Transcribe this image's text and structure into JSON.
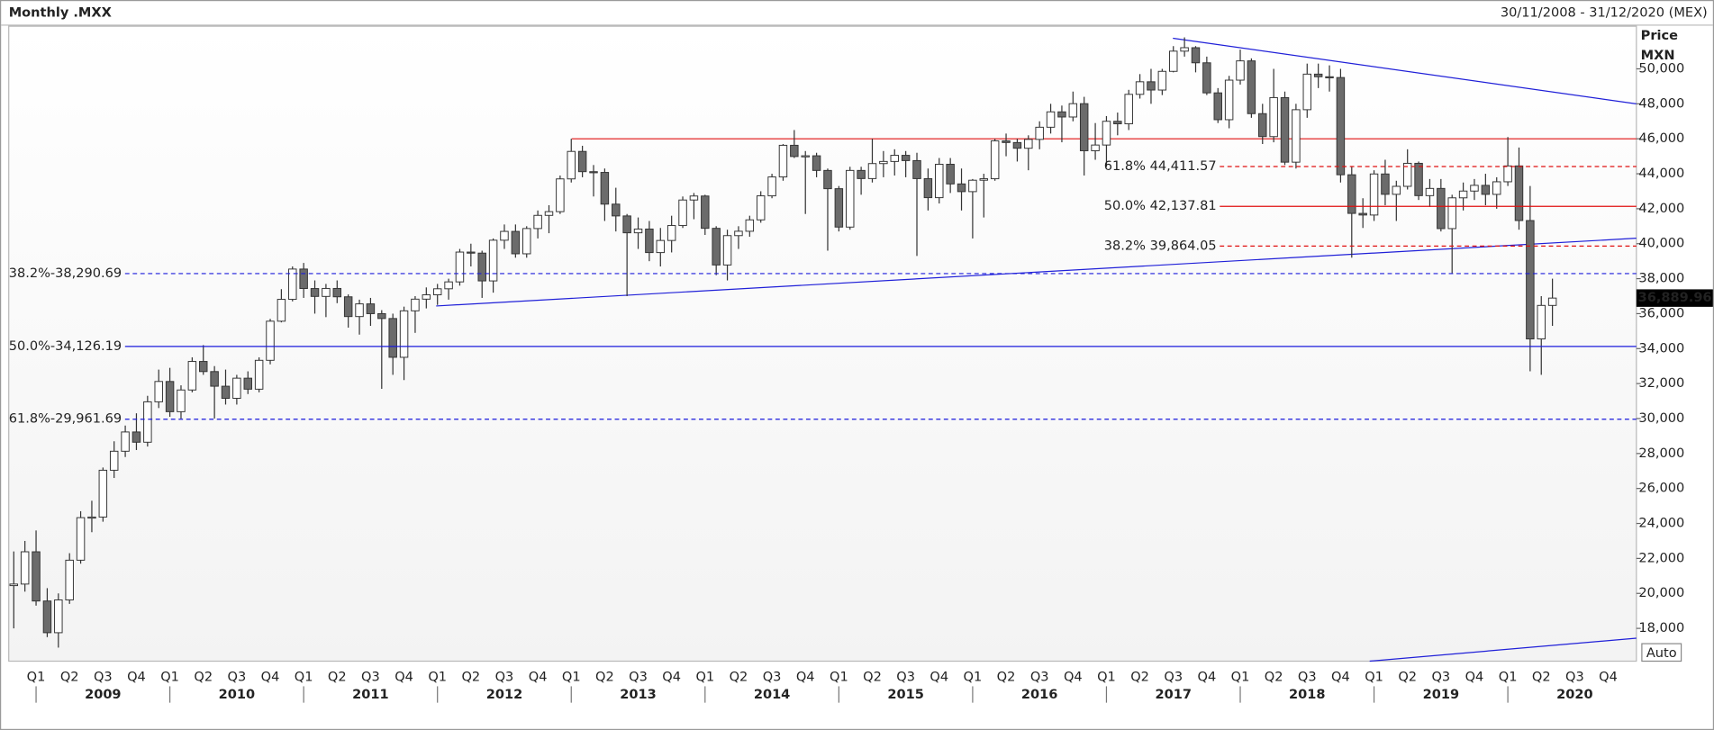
{
  "header": {
    "title": "Monthly .MXX",
    "range": "30/11/2008 - 31/12/2020 (MEX)"
  },
  "chart_data": {
    "type": "candlestick",
    "y_label": "Price",
    "y_unit": "MXN",
    "up_color": "#ffffff",
    "down_color": "#6b6b6b",
    "outline_color": "#333333",
    "ohlc": [
      [
        20445,
        22400,
        18000,
        20534
      ],
      [
        20534,
        23000,
        20100,
        22380
      ],
      [
        22380,
        23600,
        19300,
        19565
      ],
      [
        19565,
        20300,
        17500,
        17752
      ],
      [
        17752,
        20000,
        16900,
        19627
      ],
      [
        19627,
        22300,
        19400,
        21899
      ],
      [
        21899,
        24700,
        21700,
        24332
      ],
      [
        24332,
        25300,
        23500,
        24368
      ],
      [
        24368,
        27200,
        24100,
        27044
      ],
      [
        27044,
        28700,
        26600,
        28130
      ],
      [
        28130,
        29600,
        27800,
        29232
      ],
      [
        29232,
        30300,
        28200,
        28646
      ],
      [
        28646,
        31300,
        28400,
        30957
      ],
      [
        30957,
        32800,
        30600,
        32120
      ],
      [
        32120,
        32900,
        30100,
        30392
      ],
      [
        30392,
        31900,
        30000,
        31634
      ],
      [
        31634,
        33500,
        31500,
        33266
      ],
      [
        33266,
        34200,
        32500,
        32687
      ],
      [
        32687,
        33000,
        30000,
        31849
      ],
      [
        31849,
        32800,
        30800,
        31157
      ],
      [
        31157,
        32500,
        30800,
        32309
      ],
      [
        32309,
        32700,
        31400,
        31680
      ],
      [
        31680,
        33500,
        31500,
        33330
      ],
      [
        33330,
        35700,
        33100,
        35568
      ],
      [
        35568,
        37400,
        35500,
        36818
      ],
      [
        36818,
        38700,
        36700,
        38550
      ],
      [
        38550,
        38900,
        36900,
        37436
      ],
      [
        37436,
        37900,
        36000,
        36984
      ],
      [
        36984,
        37700,
        35800,
        37441
      ],
      [
        37441,
        37900,
        36600,
        36963
      ],
      [
        36963,
        37100,
        35200,
        35833
      ],
      [
        35833,
        36800,
        34800,
        36558
      ],
      [
        36558,
        36900,
        35300,
        35999
      ],
      [
        35999,
        36200,
        31700,
        35721
      ],
      [
        35721,
        36000,
        32500,
        33503
      ],
      [
        33503,
        36400,
        32200,
        36160
      ],
      [
        36160,
        37000,
        34900,
        36829
      ],
      [
        36829,
        37500,
        36300,
        37077
      ],
      [
        37077,
        37700,
        36500,
        37422
      ],
      [
        37422,
        38000,
        36800,
        37816
      ],
      [
        37816,
        39700,
        37600,
        39521
      ],
      [
        39521,
        40000,
        38700,
        39461
      ],
      [
        39461,
        39600,
        36900,
        37872
      ],
      [
        37872,
        40300,
        37200,
        40199
      ],
      [
        40199,
        41100,
        39700,
        40704
      ],
      [
        40704,
        41100,
        39200,
        39422
      ],
      [
        39422,
        41000,
        39200,
        40867
      ],
      [
        40867,
        41900,
        40300,
        41620
      ],
      [
        41620,
        42200,
        40600,
        41833
      ],
      [
        41833,
        43900,
        41700,
        43706
      ],
      [
        43706,
        46000,
        43500,
        45278
      ],
      [
        45278,
        45600,
        43800,
        44120
      ],
      [
        44120,
        44500,
        42700,
        44077
      ],
      [
        44077,
        44300,
        41300,
        42263
      ],
      [
        42263,
        43200,
        40700,
        41588
      ],
      [
        41588,
        41700,
        37000,
        40623
      ],
      [
        40623,
        41500,
        39700,
        40838
      ],
      [
        40838,
        41300,
        39000,
        39492
      ],
      [
        39492,
        40900,
        38700,
        40185
      ],
      [
        40185,
        41600,
        39500,
        41039
      ],
      [
        41039,
        42700,
        40900,
        42499
      ],
      [
        42499,
        42900,
        41400,
        42727
      ],
      [
        42727,
        42800,
        40500,
        40879
      ],
      [
        40879,
        41000,
        38200,
        38783
      ],
      [
        38783,
        40800,
        37900,
        40462
      ],
      [
        40462,
        41000,
        39700,
        40712
      ],
      [
        40712,
        41600,
        40400,
        41363
      ],
      [
        41363,
        43000,
        41200,
        42737
      ],
      [
        42737,
        44000,
        42600,
        43818
      ],
      [
        43818,
        45700,
        43600,
        45628
      ],
      [
        45628,
        46500,
        44900,
        44986
      ],
      [
        44986,
        45300,
        41700,
        45028
      ],
      [
        45028,
        45200,
        43800,
        44190
      ],
      [
        44190,
        44300,
        39600,
        43146
      ],
      [
        43146,
        43300,
        40700,
        40951
      ],
      [
        40951,
        44400,
        40800,
        44190
      ],
      [
        44190,
        44400,
        42800,
        43725
      ],
      [
        43725,
        46000,
        43500,
        44582
      ],
      [
        44582,
        45300,
        43800,
        44704
      ],
      [
        44704,
        45400,
        43900,
        45054
      ],
      [
        45054,
        45300,
        43800,
        44753
      ],
      [
        44753,
        45200,
        39300,
        43722
      ],
      [
        43722,
        44300,
        41900,
        42633
      ],
      [
        42633,
        44900,
        42300,
        44543
      ],
      [
        44543,
        44900,
        42900,
        43419
      ],
      [
        43419,
        44300,
        41900,
        42978
      ],
      [
        42978,
        43700,
        40300,
        43631
      ],
      [
        43631,
        44000,
        41500,
        43715
      ],
      [
        43715,
        46000,
        43600,
        45881
      ],
      [
        45881,
        46300,
        45000,
        45785
      ],
      [
        45785,
        46000,
        44700,
        45459
      ],
      [
        45459,
        46200,
        44200,
        45966
      ],
      [
        45966,
        47000,
        45400,
        46661
      ],
      [
        46661,
        48000,
        46300,
        47541
      ],
      [
        47541,
        47900,
        45800,
        47246
      ],
      [
        47246,
        48700,
        47000,
        48009
      ],
      [
        48009,
        48400,
        43900,
        45316
      ],
      [
        45316,
        46900,
        44800,
        45643
      ],
      [
        45643,
        47300,
        44400,
        47001
      ],
      [
        47001,
        47500,
        46200,
        46857
      ],
      [
        46857,
        48800,
        46500,
        48542
      ],
      [
        48542,
        49700,
        48300,
        49261
      ],
      [
        49261,
        50000,
        48000,
        48788
      ],
      [
        48788,
        50000,
        48500,
        49857
      ],
      [
        49857,
        51300,
        49800,
        51012
      ],
      [
        51012,
        51800,
        50700,
        51210
      ],
      [
        51210,
        51300,
        49800,
        50346
      ],
      [
        50346,
        50700,
        48500,
        48626
      ],
      [
        48626,
        48900,
        46900,
        47092
      ],
      [
        47092,
        49600,
        46600,
        49354
      ],
      [
        49354,
        51100,
        49100,
        50456
      ],
      [
        50456,
        50600,
        47200,
        47438
      ],
      [
        47438,
        48000,
        45700,
        46125
      ],
      [
        46125,
        50000,
        45800,
        48355
      ],
      [
        48355,
        48700,
        44500,
        44663
      ],
      [
        44663,
        48000,
        44300,
        47663
      ],
      [
        47663,
        50300,
        47200,
        49698
      ],
      [
        49698,
        50300,
        48900,
        49548
      ],
      [
        49548,
        50200,
        48700,
        49504
      ],
      [
        49504,
        50000,
        43500,
        43943
      ],
      [
        43943,
        44400,
        39200,
        41733
      ],
      [
        41733,
        42600,
        40900,
        41640
      ],
      [
        41640,
        44200,
        41300,
        43988
      ],
      [
        43988,
        44800,
        42200,
        42824
      ],
      [
        42824,
        43600,
        41300,
        43281
      ],
      [
        43281,
        45400,
        43100,
        44597
      ],
      [
        44597,
        44700,
        42500,
        42749
      ],
      [
        42749,
        43700,
        42100,
        43161
      ],
      [
        43161,
        43700,
        40700,
        40863
      ],
      [
        40863,
        42800,
        38300,
        42623
      ],
      [
        42623,
        43500,
        41900,
        43011
      ],
      [
        43011,
        43700,
        42500,
        43337
      ],
      [
        43337,
        44000,
        42200,
        42821
      ],
      [
        42821,
        43800,
        42000,
        43541
      ],
      [
        43541,
        46100,
        43300,
        44448
      ],
      [
        44448,
        45500,
        40800,
        41324
      ],
      [
        41324,
        43300,
        32700,
        34554
      ],
      [
        34554,
        37000,
        32500,
        36470
      ],
      [
        36470,
        38000,
        35300,
        36889.96
      ]
    ],
    "ylim": [
      16125,
      52437.5
    ],
    "yticks": [
      {
        "value": 18000,
        "label": "18,000"
      },
      {
        "value": 20000,
        "label": "20,000"
      },
      {
        "value": 22000,
        "label": "22,000"
      },
      {
        "value": 24000,
        "label": "24,000"
      },
      {
        "value": 26000,
        "label": "26,000"
      },
      {
        "value": 28000,
        "label": "28,000"
      },
      {
        "value": 30000,
        "label": "30,000"
      },
      {
        "value": 32000,
        "label": "32,000"
      },
      {
        "value": 34000,
        "label": "34,000"
      },
      {
        "value": 36000,
        "label": "36,000"
      },
      {
        "value": 38000,
        "label": "38,000"
      },
      {
        "value": 40000,
        "label": "40,000"
      },
      {
        "value": 42000,
        "label": "42,000"
      },
      {
        "value": 44000,
        "label": "44,000"
      },
      {
        "value": 46000,
        "label": "46,000"
      },
      {
        "value": 48000,
        "label": "48,000"
      },
      {
        "value": 50000,
        "label": "50,000"
      }
    ],
    "grid": false,
    "quarters": [
      "Q1",
      "Q2",
      "Q3",
      "Q4",
      "Q1",
      "Q2",
      "Q3",
      "Q4",
      "Q1",
      "Q2",
      "Q3",
      "Q4",
      "Q1",
      "Q2",
      "Q3",
      "Q4",
      "Q1",
      "Q2",
      "Q3",
      "Q4",
      "Q1",
      "Q2",
      "Q3",
      "Q4",
      "Q1",
      "Q2",
      "Q3",
      "Q4",
      "Q1",
      "Q2",
      "Q3",
      "Q4",
      "Q1",
      "Q2",
      "Q3",
      "Q4",
      "Q1",
      "Q2",
      "Q3",
      "Q4",
      "Q1",
      "Q2",
      "Q3",
      "Q4",
      "Q1",
      "Q2",
      "Q3",
      "Q4"
    ],
    "years": [
      "2009",
      "2010",
      "2011",
      "2012",
      "2013",
      "2014",
      "2015",
      "2016",
      "2017",
      "2018",
      "2019",
      "2020"
    ],
    "last_price": {
      "value": 36889.96,
      "label": "36,889.96"
    },
    "annotations": [
      {
        "label": "38.2%-38,290.69",
        "value": 38290.69,
        "color": "#1a1adc",
        "dashed": true,
        "side": "left"
      },
      {
        "label": "50.0%-34,126.19",
        "value": 34126.19,
        "color": "#1a1adc",
        "dashed": false,
        "side": "left"
      },
      {
        "label": "61.8%-29,961.69",
        "value": 29961.69,
        "color": "#1a1adc",
        "dashed": true,
        "side": "left"
      },
      {
        "label": "61.8% 44,411.57",
        "value": 44411.57,
        "color": "#e01010",
        "dashed": true,
        "side": "right"
      },
      {
        "label": "50.0% 42,137.81",
        "value": 42137.81,
        "color": "#e01010",
        "dashed": false,
        "side": "right"
      },
      {
        "label": "38.2% 39,864.05",
        "value": 39864.05,
        "color": "#e01010",
        "dashed": true,
        "side": "right"
      }
    ],
    "scale_button": "Auto"
  }
}
